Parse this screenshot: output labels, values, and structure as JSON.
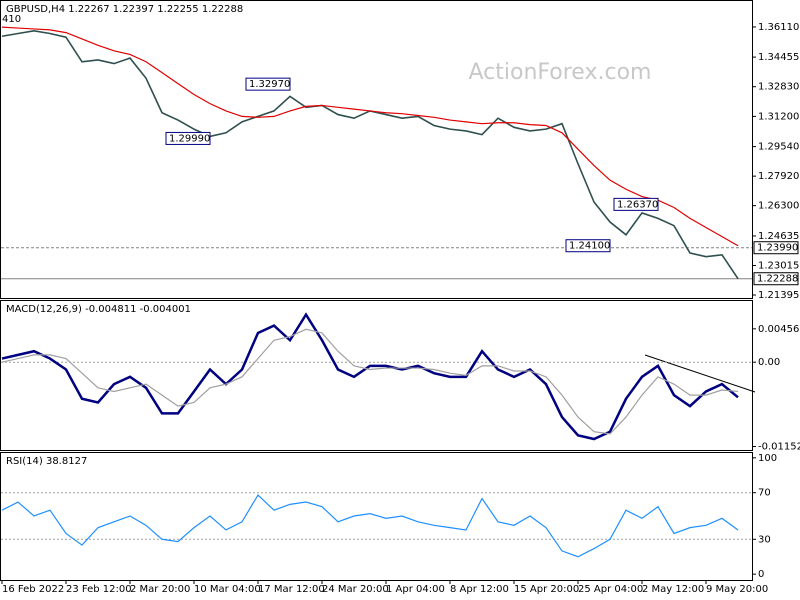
{
  "chart_data": [
    {
      "type": "line",
      "title": "GBPUSD,H4  1.22267 1.22397 1.22255 1.22288",
      "watermark": "ActionForex.com",
      "corner_label": "410",
      "ylim": [
        1.2123,
        1.3759
      ],
      "yticks": [
        {
          "value": 1.3611,
          "label": "1.36110"
        },
        1.34455,
        {
          "value": 1.3283,
          "label": "1.32830"
        },
        {
          "value": 1.312,
          "label": "1.31200"
        },
        {
          "value": 1.2954,
          "label": "1.29540"
        },
        {
          "value": 1.2792,
          "label": "1.27920"
        },
        {
          "value": 1.263,
          "label": "1.26300"
        },
        1.24635,
        1.23015,
        1.21395
      ],
      "series": [
        {
          "name": "GBPUSD,H4",
          "color": "#2f4f4f",
          "values": [
            1.356,
            1.3575,
            1.359,
            1.3575,
            1.3555,
            1.342,
            1.343,
            1.341,
            1.344,
            1.333,
            1.314,
            1.31,
            1.305,
            1.301,
            1.303,
            1.309,
            1.312,
            1.315,
            1.323,
            1.317,
            1.318,
            1.313,
            1.311,
            1.315,
            1.313,
            1.311,
            1.312,
            1.307,
            1.305,
            1.304,
            1.302,
            1.311,
            1.306,
            1.304,
            1.305,
            1.308,
            1.286,
            1.265,
            1.254,
            1.247,
            1.259,
            1.256,
            1.252,
            1.237,
            1.235,
            1.236,
            1.2229
          ]
        },
        {
          "name": "MA",
          "color": "#e00000",
          "values": [
            1.361,
            1.3605,
            1.36,
            1.3595,
            1.358,
            1.3545,
            1.351,
            1.348,
            1.346,
            1.342,
            1.336,
            1.33,
            1.324,
            1.319,
            1.315,
            1.312,
            1.3115,
            1.312,
            1.315,
            1.3175,
            1.318,
            1.317,
            1.316,
            1.315,
            1.314,
            1.3135,
            1.3125,
            1.3115,
            1.31,
            1.309,
            1.308,
            1.3085,
            1.3085,
            1.3075,
            1.307,
            1.303,
            1.294,
            1.285,
            1.277,
            1.272,
            1.268,
            1.266,
            1.262,
            1.256,
            1.251,
            1.246,
            1.241
          ]
        }
      ],
      "annotations": [
        {
          "index": 13,
          "value": 1.2999,
          "label": "1.29990"
        },
        {
          "index": 18,
          "value": 1.3297,
          "label": "1.32970"
        },
        {
          "index": 41,
          "value": 1.2637,
          "label": "1.26370"
        },
        {
          "index": 38,
          "value": 1.241,
          "label": "1.24100"
        }
      ],
      "hlines": [
        {
          "value": 1.2399,
          "label": "1.23990",
          "style": "dashed"
        },
        {
          "value": 1.22288,
          "label": "1.22288",
          "style": "solid"
        }
      ]
    },
    {
      "type": "line",
      "title": "MACD(12,26,9) -0.004811 -0.004001",
      "ylim": [
        -0.012,
        0.0085
      ],
      "yticks": [
        0.00456,
        {
          "value": 0,
          "label": "0.00"
        },
        -0.011529
      ],
      "levels": [
        0
      ],
      "series": [
        {
          "name": "MACD",
          "color": "#000080",
          "values": [
            0.0005,
            0.001,
            0.0015,
            0.0005,
            -0.001,
            -0.005,
            -0.0055,
            -0.003,
            -0.002,
            -0.0035,
            -0.007,
            -0.007,
            -0.004,
            -0.001,
            -0.003,
            -0.001,
            0.004,
            0.005,
            0.003,
            0.0065,
            0.003,
            -0.001,
            -0.002,
            -0.0005,
            -0.0005,
            -0.001,
            -0.0005,
            -0.0015,
            -0.002,
            -0.002,
            0.0015,
            -0.001,
            -0.002,
            -0.001,
            -0.003,
            -0.0075,
            -0.01,
            -0.0105,
            -0.0095,
            -0.005,
            -0.002,
            -0.0005,
            -0.0045,
            -0.006,
            -0.004,
            -0.003,
            -0.0048
          ]
        },
        {
          "name": "Signal",
          "color": "#a0a0a0",
          "values": [
            0,
            0.0005,
            0.001,
            0.001,
            0.0005,
            -0.0015,
            -0.0035,
            -0.004,
            -0.0035,
            -0.003,
            -0.0045,
            -0.006,
            -0.0055,
            -0.0035,
            -0.003,
            -0.002,
            0.0005,
            0.003,
            0.0035,
            0.0045,
            0.004,
            0.0015,
            -0.0005,
            -0.001,
            -0.0008,
            -0.0008,
            -0.0008,
            -0.001,
            -0.0015,
            -0.0018,
            -0.0005,
            -0.0005,
            -0.0012,
            -0.0012,
            -0.002,
            -0.0045,
            -0.0075,
            -0.0095,
            -0.0098,
            -0.0075,
            -0.0045,
            -0.002,
            -0.003,
            -0.0045,
            -0.0045,
            -0.0038,
            -0.004
          ]
        }
      ]
    },
    {
      "type": "line",
      "title": "RSI(14) 38.8127",
      "ylim": [
        -5,
        105
      ],
      "yticks": [
        100,
        70,
        30,
        0
      ],
      "levels": [
        30,
        70
      ],
      "categories": [
        "16 Feb 2022",
        null,
        null,
        null,
        "23 Feb 12:00",
        null,
        null,
        null,
        "2 Mar 20:00",
        null,
        null,
        null,
        "10 Mar 04:00",
        null,
        null,
        null,
        "17 Mar 12:00",
        null,
        null,
        null,
        "24 Mar 20:00",
        null,
        null,
        null,
        "1 Apr 04:00",
        null,
        null,
        null,
        "8 Apr 12:00",
        null,
        null,
        null,
        "15 Apr 20:00",
        null,
        null,
        null,
        "25 Apr 04:00",
        null,
        null,
        null,
        "2 May 12:00",
        null,
        null,
        null,
        "9 May 20:00",
        null,
        null
      ],
      "series": [
        {
          "name": "RSI",
          "color": "#1e90ff",
          "values": [
            55,
            62,
            50,
            55,
            35,
            25,
            40,
            45,
            50,
            42,
            30,
            28,
            40,
            50,
            38,
            45,
            68,
            55,
            60,
            62,
            58,
            45,
            50,
            52,
            48,
            50,
            45,
            42,
            40,
            38,
            65,
            45,
            42,
            50,
            40,
            20,
            15,
            22,
            30,
            55,
            48,
            58,
            35,
            40,
            42,
            48,
            38
          ]
        }
      ]
    }
  ]
}
